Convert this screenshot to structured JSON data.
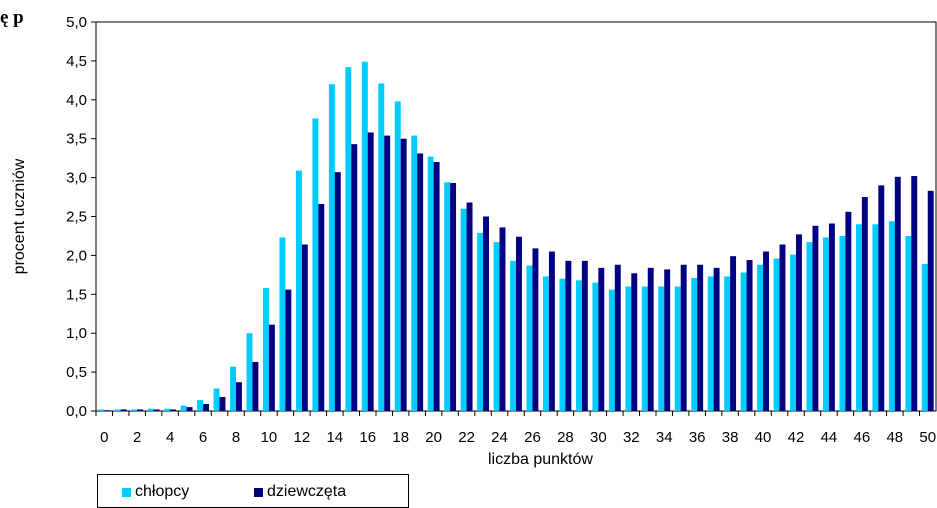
{
  "heading_fragment": "ę       p",
  "chart_data": {
    "type": "bar",
    "xlabel": "liczba punktów",
    "ylabel": "procent uczniów",
    "ylim": [
      0,
      5
    ],
    "y_ticks": [
      "0,0",
      "0,5",
      "1,0",
      "1,5",
      "2,0",
      "2,5",
      "3,0",
      "3,5",
      "4,0",
      "4,5",
      "5,0"
    ],
    "x_tick_labels": [
      "0",
      "2",
      "4",
      "6",
      "8",
      "10",
      "12",
      "14",
      "16",
      "18",
      "20",
      "22",
      "24",
      "26",
      "28",
      "30",
      "32",
      "34",
      "36",
      "38",
      "40",
      "42",
      "44",
      "46",
      "48",
      "50"
    ],
    "categories": [
      0,
      1,
      2,
      3,
      4,
      5,
      6,
      7,
      8,
      9,
      10,
      11,
      12,
      13,
      14,
      15,
      16,
      17,
      18,
      19,
      20,
      21,
      22,
      23,
      24,
      25,
      26,
      27,
      28,
      29,
      30,
      31,
      32,
      33,
      34,
      35,
      36,
      37,
      38,
      39,
      40,
      41,
      42,
      43,
      44,
      45,
      46,
      47,
      48,
      49,
      50
    ],
    "legend_position": "bottom-left",
    "grid": false,
    "series": [
      {
        "name": "chłopcy",
        "color": "#00ccff",
        "values": [
          0.02,
          0.02,
          0.02,
          0.03,
          0.03,
          0.07,
          0.14,
          0.29,
          0.57,
          1.0,
          1.58,
          2.23,
          3.09,
          3.76,
          4.2,
          4.42,
          4.49,
          4.21,
          3.98,
          3.54,
          3.27,
          2.94,
          2.6,
          2.29,
          2.17,
          1.93,
          1.87,
          1.73,
          1.7,
          1.68,
          1.65,
          1.56,
          1.6,
          1.6,
          1.6,
          1.6,
          1.71,
          1.73,
          1.73,
          1.78,
          1.88,
          1.96,
          2.01,
          2.17,
          2.23,
          2.25,
          2.4,
          2.4,
          2.44,
          2.25,
          1.89
        ]
      },
      {
        "name": "dziewczęta",
        "color": "#000080",
        "values": [
          0.01,
          0.02,
          0.02,
          0.02,
          0.02,
          0.05,
          0.09,
          0.18,
          0.37,
          0.63,
          1.11,
          1.56,
          2.14,
          2.66,
          3.07,
          3.43,
          3.58,
          3.54,
          3.5,
          3.31,
          3.2,
          2.93,
          2.68,
          2.5,
          2.36,
          2.24,
          2.09,
          2.05,
          1.93,
          1.93,
          1.84,
          1.88,
          1.77,
          1.84,
          1.82,
          1.88,
          1.88,
          1.84,
          1.99,
          1.94,
          2.05,
          2.14,
          2.27,
          2.38,
          2.41,
          2.56,
          2.75,
          2.9,
          3.01,
          3.02,
          2.83
        ]
      }
    ]
  }
}
